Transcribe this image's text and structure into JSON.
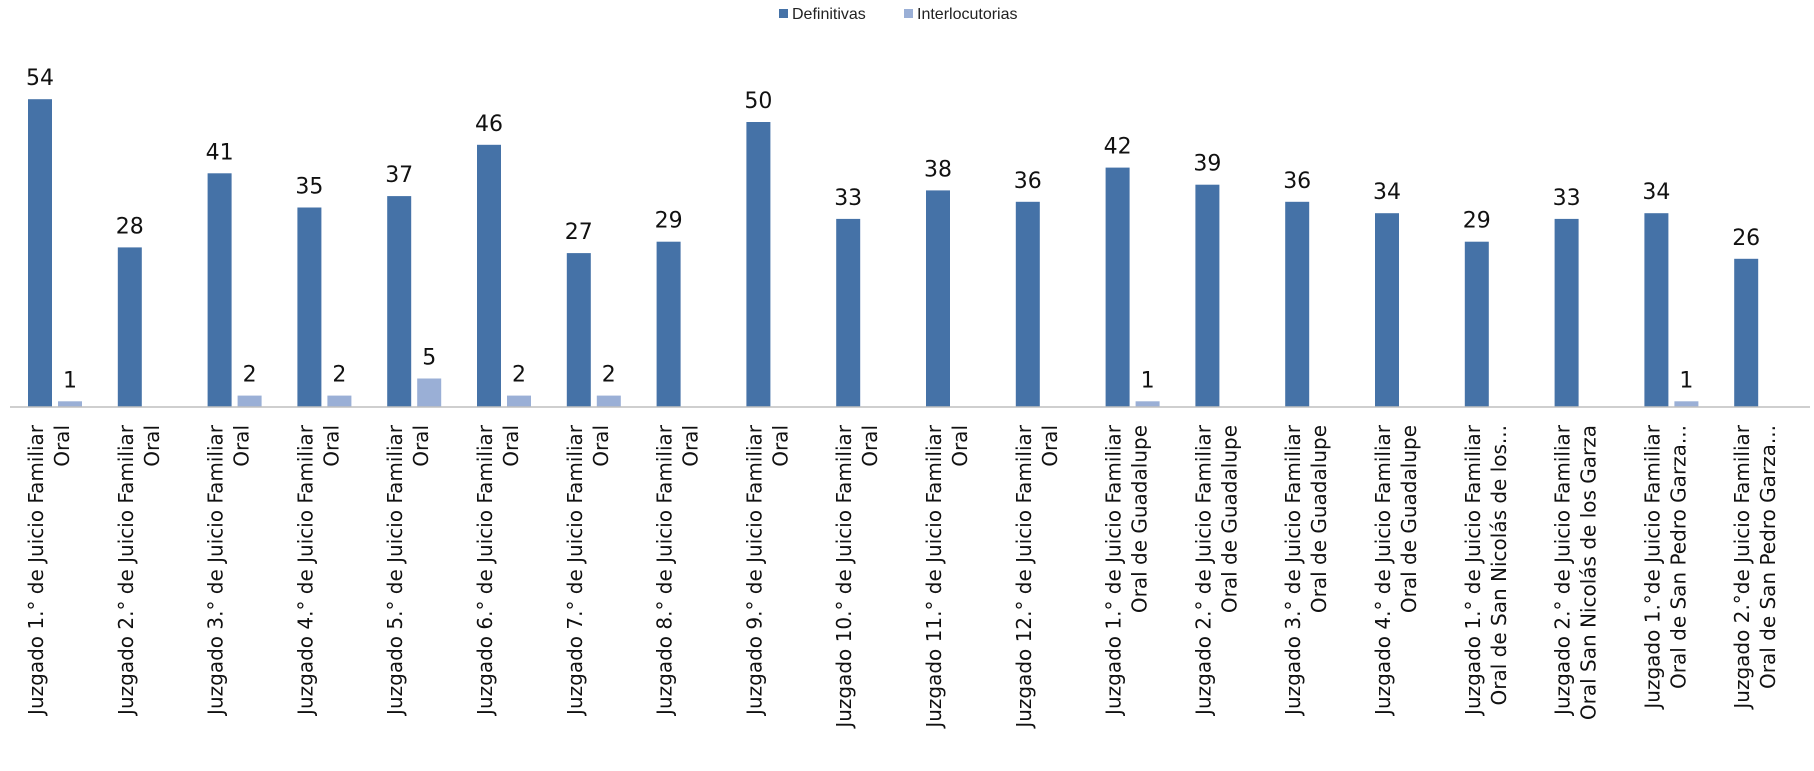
{
  "chart_data": {
    "type": "bar",
    "title": "",
    "xlabel": "",
    "ylabel": "",
    "ylim": [
      0,
      58
    ],
    "grid": false,
    "legend_position": "top-center",
    "colors": {
      "Definitivas": "#4572A7",
      "Interlocutorias": "#9AAFD6",
      "axis": "#BFBFBF"
    },
    "categories": [
      [
        "Juzgado 1.° de Juicio Familiar",
        "Oral"
      ],
      [
        "Juzgado 2.° de Juicio Familiar",
        "Oral"
      ],
      [
        "Juzgado 3.° de Juicio Familiar",
        "Oral"
      ],
      [
        "Juzgado 4.° de Juicio Familiar",
        "Oral"
      ],
      [
        "Juzgado 5.° de Juicio Familiar",
        "Oral"
      ],
      [
        "Juzgado 6.° de Juicio Familiar",
        "Oral"
      ],
      [
        "Juzgado 7.° de Juicio Familiar",
        "Oral"
      ],
      [
        "Juzgado 8.° de Juicio Familiar",
        "Oral"
      ],
      [
        "Juzgado 9.° de Juicio Familiar",
        "Oral"
      ],
      [
        "Juzgado 10.° de Juicio Familiar",
        "Oral"
      ],
      [
        "Juzgado 11.° de Juicio Familiar",
        "Oral"
      ],
      [
        "Juzgado 12.° de Juicio Familiar",
        "Oral"
      ],
      [
        "Juzgado 1.° de Juicio Familiar",
        "Oral de Guadalupe"
      ],
      [
        "Juzgado 2.° de Juicio Familiar",
        "Oral de Guadalupe"
      ],
      [
        "Juzgado 3.° de Juicio Familiar",
        "Oral de Guadalupe"
      ],
      [
        "Juzgado 4.° de Juicio Familiar",
        "Oral de Guadalupe"
      ],
      [
        "Juzgado 1.° de Juicio Familiar",
        "Oral de San Nicolás de los..."
      ],
      [
        "Juzgado 2.° de Juicio Familiar",
        "Oral San Nicolás de los Garza"
      ],
      [
        "Juzgado 1.°de Juicio Familiar",
        "Oral de San Pedro Garza..."
      ],
      [
        "Juzgado 2.°de Juicio Familiar",
        "Oral de San Pedro Garza..."
      ]
    ],
    "series": [
      {
        "name": "Definitivas",
        "values": [
          54,
          28,
          41,
          35,
          37,
          46,
          27,
          29,
          50,
          33,
          38,
          36,
          42,
          39,
          36,
          34,
          29,
          33,
          34,
          26
        ]
      },
      {
        "name": "Interlocutorias",
        "values": [
          1,
          null,
          2,
          2,
          5,
          2,
          2,
          null,
          null,
          null,
          null,
          null,
          1,
          null,
          null,
          null,
          null,
          null,
          1,
          null
        ]
      }
    ]
  }
}
